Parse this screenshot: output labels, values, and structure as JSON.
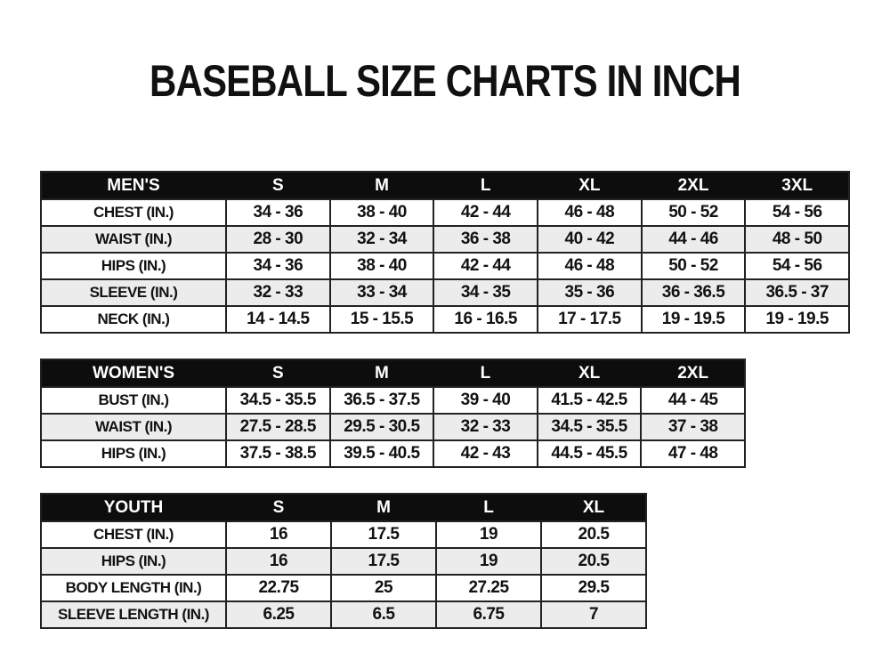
{
  "title": "BASEBALL SIZE CHARTS IN INCH",
  "colors": {
    "header_bg": "#0d0d0d",
    "header_text": "#ffffff",
    "stripe_bg": "#ececec",
    "border": "#222222",
    "text": "#121212",
    "page_bg": "#ffffff"
  },
  "chart_data": [
    {
      "type": "table",
      "name": "mens-size-chart",
      "columns": [
        "MEN'S",
        "S",
        "M",
        "L",
        "XL",
        "2XL",
        "3XL"
      ],
      "rows": [
        [
          "CHEST (IN.)",
          "34 - 36",
          "38 - 40",
          "42 - 44",
          "46 - 48",
          "50 - 52",
          "54 - 56"
        ],
        [
          "WAIST (IN.)",
          "28 - 30",
          "32 - 34",
          "36 - 38",
          "40 - 42",
          "44 - 46",
          "48 - 50"
        ],
        [
          "HIPS (IN.)",
          "34 - 36",
          "38 - 40",
          "42 - 44",
          "46 - 48",
          "50 - 52",
          "54 - 56"
        ],
        [
          "SLEEVE (IN.)",
          "32 - 33",
          "33 - 34",
          "34 - 35",
          "35 - 36",
          "36 - 36.5",
          "36.5 - 37"
        ],
        [
          "NECK (IN.)",
          "14 - 14.5",
          "15 - 15.5",
          "16 - 16.5",
          "17 - 17.5",
          "19 - 19.5",
          "19 - 19.5"
        ]
      ]
    },
    {
      "type": "table",
      "name": "womens-size-chart",
      "columns": [
        "WOMEN'S",
        "S",
        "M",
        "L",
        "XL",
        "2XL"
      ],
      "rows": [
        [
          "BUST (IN.)",
          "34.5 - 35.5",
          "36.5 - 37.5",
          "39 - 40",
          "41.5 - 42.5",
          "44 - 45"
        ],
        [
          "WAIST (IN.)",
          "27.5 - 28.5",
          "29.5 - 30.5",
          "32 - 33",
          "34.5 - 35.5",
          "37 - 38"
        ],
        [
          "HIPS (IN.)",
          "37.5 - 38.5",
          "39.5 - 40.5",
          "42 - 43",
          "44.5 - 45.5",
          "47 - 48"
        ]
      ]
    },
    {
      "type": "table",
      "name": "youth-size-chart",
      "columns": [
        "YOUTH",
        "S",
        "M",
        "L",
        "XL"
      ],
      "rows": [
        [
          "CHEST (IN.)",
          "16",
          "17.5",
          "19",
          "20.5"
        ],
        [
          "HIPS (IN.)",
          "16",
          "17.5",
          "19",
          "20.5"
        ],
        [
          "BODY LENGTH (IN.)",
          "22.75",
          "25",
          "27.25",
          "29.5"
        ],
        [
          "SLEEVE LENGTH (IN.)",
          "6.25",
          "6.5",
          "6.75",
          "7"
        ]
      ]
    }
  ]
}
